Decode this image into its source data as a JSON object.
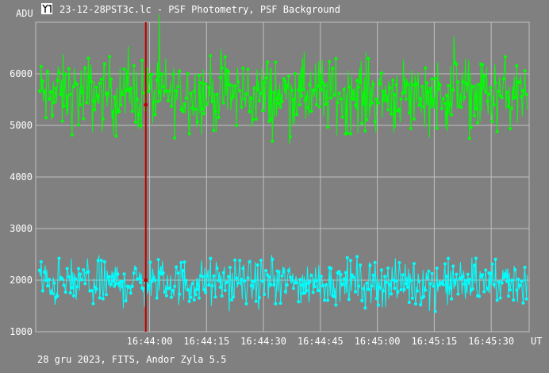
{
  "window": {
    "title": "23-12-28PST3c.lc - PSF Photometry, PSF Background",
    "icon": "plot-window-icon"
  },
  "footer": {
    "info": "28 gru 2023, FITS, Andor Zyla 5.5"
  },
  "colors": {
    "background": "#808080",
    "grid": "#c0c0c0",
    "photometry": "#00ff00",
    "background_series": "#00ffff",
    "cursor": "#c00000",
    "text": "#ffffff"
  },
  "chart_data": {
    "type": "line",
    "title": "23-12-28PST3c.lc - PSF Photometry, PSF Background",
    "ylabel": "ADU",
    "xlabel": "UT",
    "ylim": [
      1000,
      7000
    ],
    "xlim": [
      "16:43:30",
      "16:45:40"
    ],
    "yticks": [
      1000,
      2000,
      3000,
      4000,
      5000,
      6000
    ],
    "xticks": [
      "16:44:00",
      "16:44:15",
      "16:44:30",
      "16:44:45",
      "16:45:00",
      "16:45:15",
      "16:45:30"
    ],
    "grid": true,
    "markers": true,
    "cursor": {
      "x": "16:43:59",
      "values": [
        5400,
        2000
      ]
    },
    "series": [
      {
        "name": "PSF Photometry",
        "color": "#00ff00",
        "mean": 5600,
        "spread": 350,
        "approx_points": 600
      },
      {
        "name": "PSF Background",
        "color": "#00ffff",
        "mean": 1950,
        "spread": 220,
        "approx_points": 600
      }
    ]
  }
}
